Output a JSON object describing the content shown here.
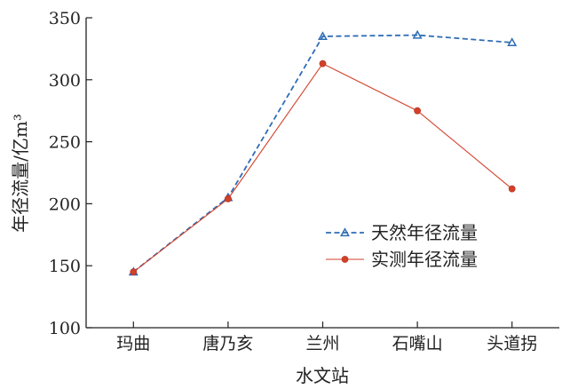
{
  "chart_data": {
    "type": "line",
    "title": "",
    "xlabel": "水文站",
    "ylabel": "年径流量/亿m³",
    "categories": [
      "玛曲",
      "唐乃亥",
      "兰州",
      "石嘴山",
      "头道拐"
    ],
    "ylim": [
      100,
      350
    ],
    "yticks": [
      100,
      150,
      200,
      250,
      300,
      350
    ],
    "grid": false,
    "legend_position": "middle-right",
    "series": [
      {
        "name": "天然年径流量",
        "values": [
          145,
          205,
          335,
          336,
          330
        ],
        "color": "#2f6db5",
        "line_style": "dashed",
        "marker": "triangle"
      },
      {
        "name": "实测年径流量",
        "values": [
          145,
          204,
          313,
          275,
          212
        ],
        "color": "#d2402a",
        "line_style": "solid",
        "marker": "circle"
      }
    ]
  }
}
